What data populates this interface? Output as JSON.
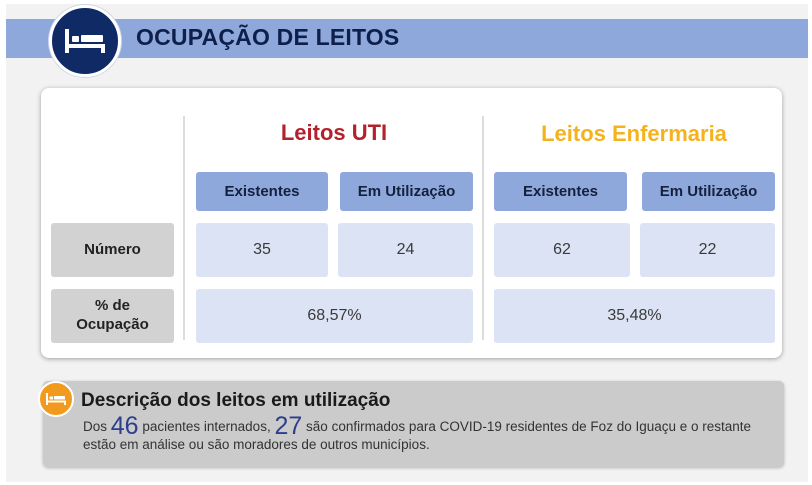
{
  "header": {
    "title": "OCUPAÇÃO DE LEITOS",
    "icon": "bed-icon",
    "band_color": "#8fa8dc",
    "icon_bg": "#102a66"
  },
  "table": {
    "groups": [
      {
        "title": "Leitos UTI",
        "color": "#b3212d",
        "headers": [
          "Existentes",
          "Em Utilização"
        ],
        "numero": [
          "35",
          "24"
        ],
        "ocupacao": "68,57%"
      },
      {
        "title": "Leitos Enfermaria",
        "color": "#f5b21b",
        "headers": [
          "Existentes",
          "Em Utilização"
        ],
        "numero": [
          "62",
          "22"
        ],
        "ocupacao": "35,48%"
      }
    ],
    "row_labels": {
      "numero": "Número",
      "ocupacao_line1": "% de",
      "ocupacao_line2": "Ocupação"
    }
  },
  "description": {
    "icon": "bed-icon",
    "icon_color": "#f29a1d",
    "title": "Descrição dos leitos em utilização",
    "prefix": "Dos",
    "internados": "46",
    "middle": "pacientes internados,",
    "confirmados": "27",
    "suffix": "são confirmados para COVID-19 residentes de Foz do Iguaçu e o restante estão em análise ou são moradores de outros municípios."
  }
}
